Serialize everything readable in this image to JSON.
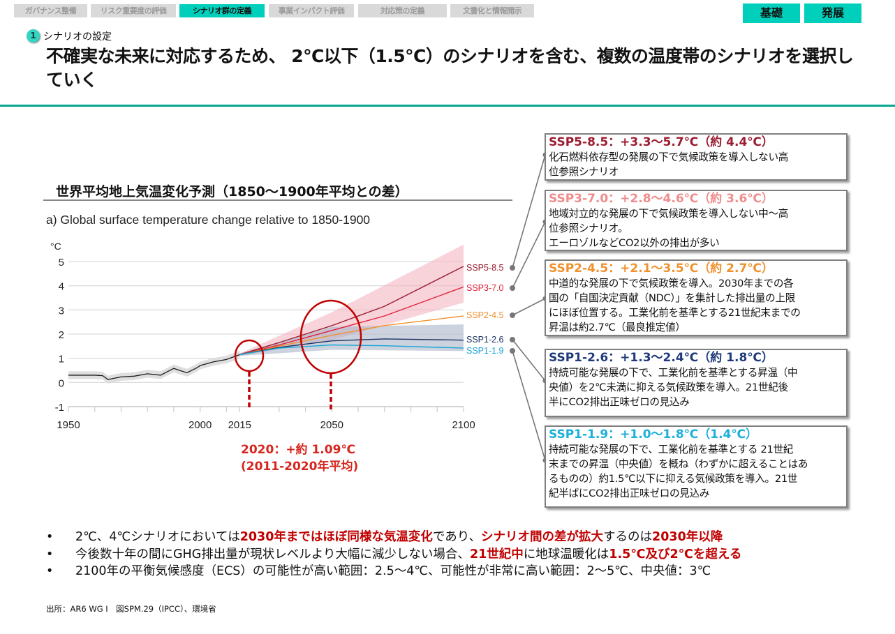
{
  "nav": {
    "tabs": [
      {
        "label": "ガバナンス整備",
        "active": false
      },
      {
        "label": "リスク重要度の評価",
        "active": false
      },
      {
        "label": "シナリオ群の定義",
        "active": true
      },
      {
        "label": "事業インパクト評価",
        "active": false
      },
      {
        "label": "対応策の定義",
        "active": false
      },
      {
        "label": "文書化と情報開示",
        "active": false
      }
    ],
    "levels": [
      "基礎",
      "発展"
    ]
  },
  "section": {
    "number": "1",
    "label": "シナリオの設定"
  },
  "page_title": "不確実な未来に対応するため、 2℃以下（1.5℃）のシナリオを含む、複数の温度帯のシナリオを選択していく",
  "chart_heading": "世界平均地上気温変化予測（1850～1900年平均との差）",
  "colors": {
    "accent": "#00d0bb",
    "rule": "#05a790",
    "highlight": "#c00000",
    "ssp585": "#9b1c31",
    "ssp370": "#e0203a",
    "ssp245": "#f0912c",
    "ssp126": "#1d3461",
    "ssp119": "#1aa5d6",
    "historical": "#1a1a1a",
    "circle": "#c00000"
  },
  "chart_data": {
    "type": "line",
    "title": "a) Global surface temperature change relative to 1850-1900",
    "ylabel": "°C",
    "xlabel": "",
    "xlim": [
      1950,
      2100
    ],
    "ylim": [
      -1,
      5
    ],
    "x_tick_labels": [
      "1950",
      "2000",
      "2015",
      "2050",
      "2100"
    ],
    "x_tick_values": [
      1950,
      2000,
      2015,
      2050,
      2100
    ],
    "x_minor_ticks": [
      1960,
      1970,
      1980,
      1990,
      2000,
      2010,
      2015,
      2030,
      2040,
      2050,
      2060,
      2070,
      2080,
      2090,
      2100
    ],
    "y_ticks": [
      5,
      4,
      3,
      2,
      1,
      0,
      -1
    ],
    "grid": true,
    "historical": {
      "name": "historical",
      "x": [
        1950,
        1955,
        1960,
        1963,
        1965,
        1970,
        1975,
        1980,
        1985,
        1988,
        1990,
        1995,
        1999,
        2000,
        2005,
        2010,
        2015
      ],
      "y": [
        0.3,
        0.3,
        0.3,
        0.28,
        0.12,
        0.23,
        0.26,
        0.36,
        0.3,
        0.47,
        0.58,
        0.4,
        0.62,
        0.7,
        0.85,
        0.95,
        1.15
      ],
      "band_half_width": 0.16
    },
    "series": [
      {
        "name": "SSP5-8.5",
        "key": "ssp585",
        "x": [
          2015,
          2030,
          2050,
          2070,
          2100
        ],
        "y": [
          1.15,
          1.65,
          2.35,
          3.15,
          4.8
        ],
        "band": [
          [
            2015,
            1.1,
            1.2
          ],
          [
            2050,
            1.75,
            2.9
          ],
          [
            2100,
            3.3,
            5.7
          ]
        ]
      },
      {
        "name": "SSP3-7.0",
        "key": "ssp370",
        "x": [
          2015,
          2030,
          2050,
          2070,
          2100
        ],
        "y": [
          1.15,
          1.55,
          2.15,
          2.75,
          3.95
        ]
      },
      {
        "name": "SSP2-4.5",
        "key": "ssp245",
        "x": [
          2015,
          2030,
          2050,
          2070,
          2100
        ],
        "y": [
          1.15,
          1.5,
          1.95,
          2.35,
          2.75
        ]
      },
      {
        "name": "SSP1-2.6",
        "key": "ssp126",
        "x": [
          2015,
          2030,
          2050,
          2070,
          2100
        ],
        "y": [
          1.15,
          1.45,
          1.72,
          1.8,
          1.75
        ],
        "band": [
          [
            2015,
            1.1,
            1.2
          ],
          [
            2050,
            1.35,
            2.3
          ],
          [
            2100,
            1.3,
            2.4
          ]
        ]
      },
      {
        "name": "SSP1-1.9",
        "key": "ssp119",
        "x": [
          2015,
          2030,
          2050,
          2070,
          2100
        ],
        "y": [
          1.15,
          1.42,
          1.55,
          1.52,
          1.42
        ]
      }
    ],
    "annotations": [
      {
        "text": "2020：+約 1.09℃\n(2011-2020年平均)",
        "x": 2020,
        "y": 1.09
      },
      {
        "text": "circle-2050",
        "x": 2050,
        "y": 1.9
      }
    ]
  },
  "note": {
    "line1": "2020：+約 1.09℃",
    "line2": "(2011-2020年平均)"
  },
  "scenarios": [
    {
      "key": "ssp585",
      "heading": "SSP5-8.5：+3.3～5.7℃（約 4.4℃）",
      "color": "#9b1c31",
      "body": [
        "化石燃料依存型の発展の下で気候政策を導入しない高",
        "位参照シナリオ"
      ]
    },
    {
      "key": "ssp370",
      "heading": "SSP3-7.0：+2.8～4.6℃（約 3.6℃）",
      "color": "#f08c8c",
      "body": [
        "地域対立的な発展の下で気候政策を導入しない中～高",
        "位参照シナリオ。",
        "エーロゾルなどCO2以外の排出が多い"
      ]
    },
    {
      "key": "ssp245",
      "heading": "SSP2-4.5：+2.1～3.5℃（約 2.7℃）",
      "color": "#f0912c",
      "body": [
        "中道的な発展の下で気候政策を導入。2030年までの各",
        "国の「自国決定貢献（NDC）」を集計した排出量の上限",
        "にほぼ位置する。工業化前を基準とする21世紀末までの",
        "昇温は約2.7℃（最良推定値）"
      ]
    },
    {
      "key": "ssp126",
      "heading": "SSP1-2.6：+1.3～2.4℃（約 1.8℃）",
      "color": "#1f3a7a",
      "body": [
        "持続可能な発展の下で、工業化前を基準とする昇温（中",
        "央値）を2℃未満に抑える気候政策を導入。21世紀後",
        "半にCO2排出正味ゼロの見込み"
      ]
    },
    {
      "key": "ssp119",
      "heading": "SSP1-1.9：+1.0～1.8℃（1.4℃）",
      "color": "#1ab0d9",
      "body": [
        "持続可能な発展の下で、工業化前を基準とする 21世紀",
        "末までの昇温（中央値）を概ね（わずかに超えることはあ",
        "るものの）約1.5℃以下に抑える気候政策を導入。21世",
        "紀半ばにCO2排出正味ゼロの見込み"
      ]
    }
  ],
  "bullets": [
    [
      {
        "t": "2℃、4℃シナリオにおいては",
        "h": false
      },
      {
        "t": "2030年まではほぼ同様な気温変化",
        "h": true
      },
      {
        "t": "であり、",
        "h": false
      },
      {
        "t": "シナリオ間の差が拡大",
        "h": true
      },
      {
        "t": "するのは",
        "h": false
      },
      {
        "t": "2030年以降",
        "h": true
      }
    ],
    [
      {
        "t": "今後数十年の間にGHG排出量が現状レベルより大幅に減少しない場合、",
        "h": false
      },
      {
        "t": "21世紀中",
        "h": true
      },
      {
        "t": "に地球温暖化は",
        "h": false
      },
      {
        "t": "1.5℃及び2℃を超える",
        "h": true
      }
    ],
    [
      {
        "t": "2100年の平衡気候感度（ECS）の可能性が高い範囲：2.5～4℃、可能性が非常に高い範囲：2～5℃、中央値：3℃",
        "h": false
      }
    ]
  ],
  "bullet_marker": "•",
  "source": "出所：AR6 WG I　図SPM.29（IPCC）、環境省"
}
